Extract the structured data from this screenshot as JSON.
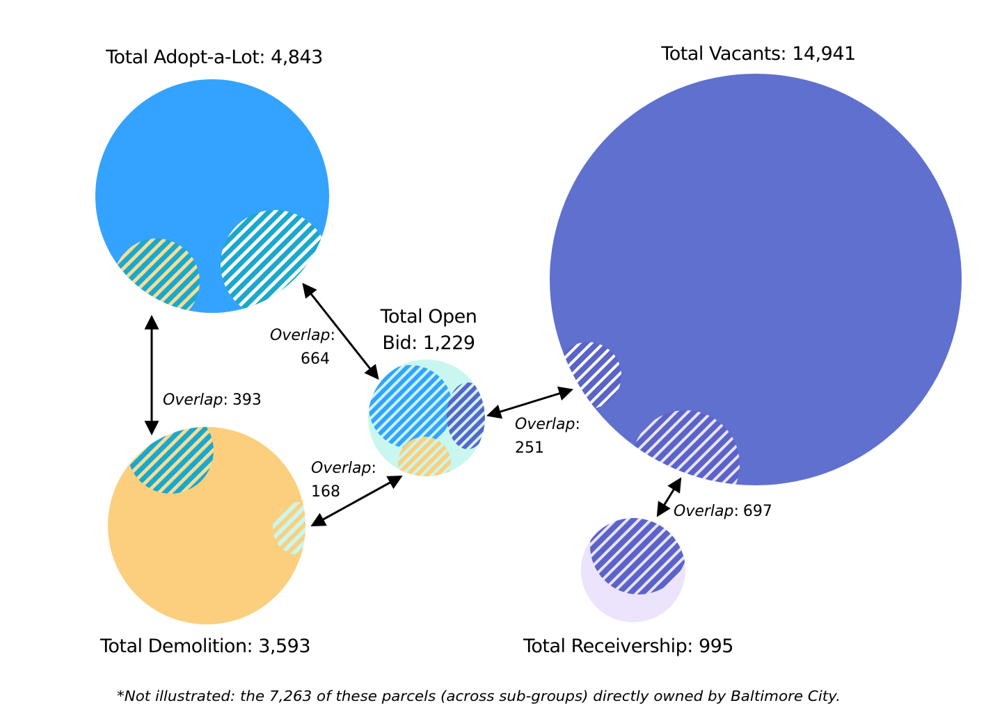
{
  "colors": {
    "adopt_a_lot": "#33a3ff",
    "demolition": "#fbcf7e",
    "open_bid": "#c9f7ef",
    "vacants": "#6070cf",
    "receivership": "#ece3fd",
    "hatch_blue_base": "#1aa8cc",
    "hatch_yellow": "#f7dc96",
    "hatch_white": "#ffffff",
    "hatch_purple": "#5a64c8",
    "arrow": "#000000"
  },
  "groups": {
    "adopt_a_lot": {
      "label": "Total Adopt-a-Lot: 4,843",
      "count": 4843
    },
    "vacants": {
      "label": "Total Vacants: 14,941",
      "count": 14941
    },
    "open_bid": {
      "label_line1": "Total Open",
      "label_line2": "Bid: 1,229",
      "count": 1229
    },
    "demolition": {
      "label": "Total Demolition: 3,593",
      "count": 3593
    },
    "receivership": {
      "label": "Total Receivership: 995",
      "count": 995
    }
  },
  "overlaps": {
    "adopt_demolition": {
      "word": "Overlap",
      "sep": ":",
      "value": "393"
    },
    "adopt_openbid": {
      "word": "Overlap",
      "sep": ":",
      "value": "664"
    },
    "demolition_openbid": {
      "word": "Overlap",
      "sep": ":",
      "value": "168"
    },
    "openbid_vacants": {
      "word": "Overlap",
      "sep": ":",
      "value": "251"
    },
    "vacants_receivership": {
      "word": "Overlap",
      "sep": ":",
      "value": "697"
    }
  },
  "footnote": "*Not illustrated: the 7,263 of these parcels (across sub-groups) directly owned by Baltimore City."
}
